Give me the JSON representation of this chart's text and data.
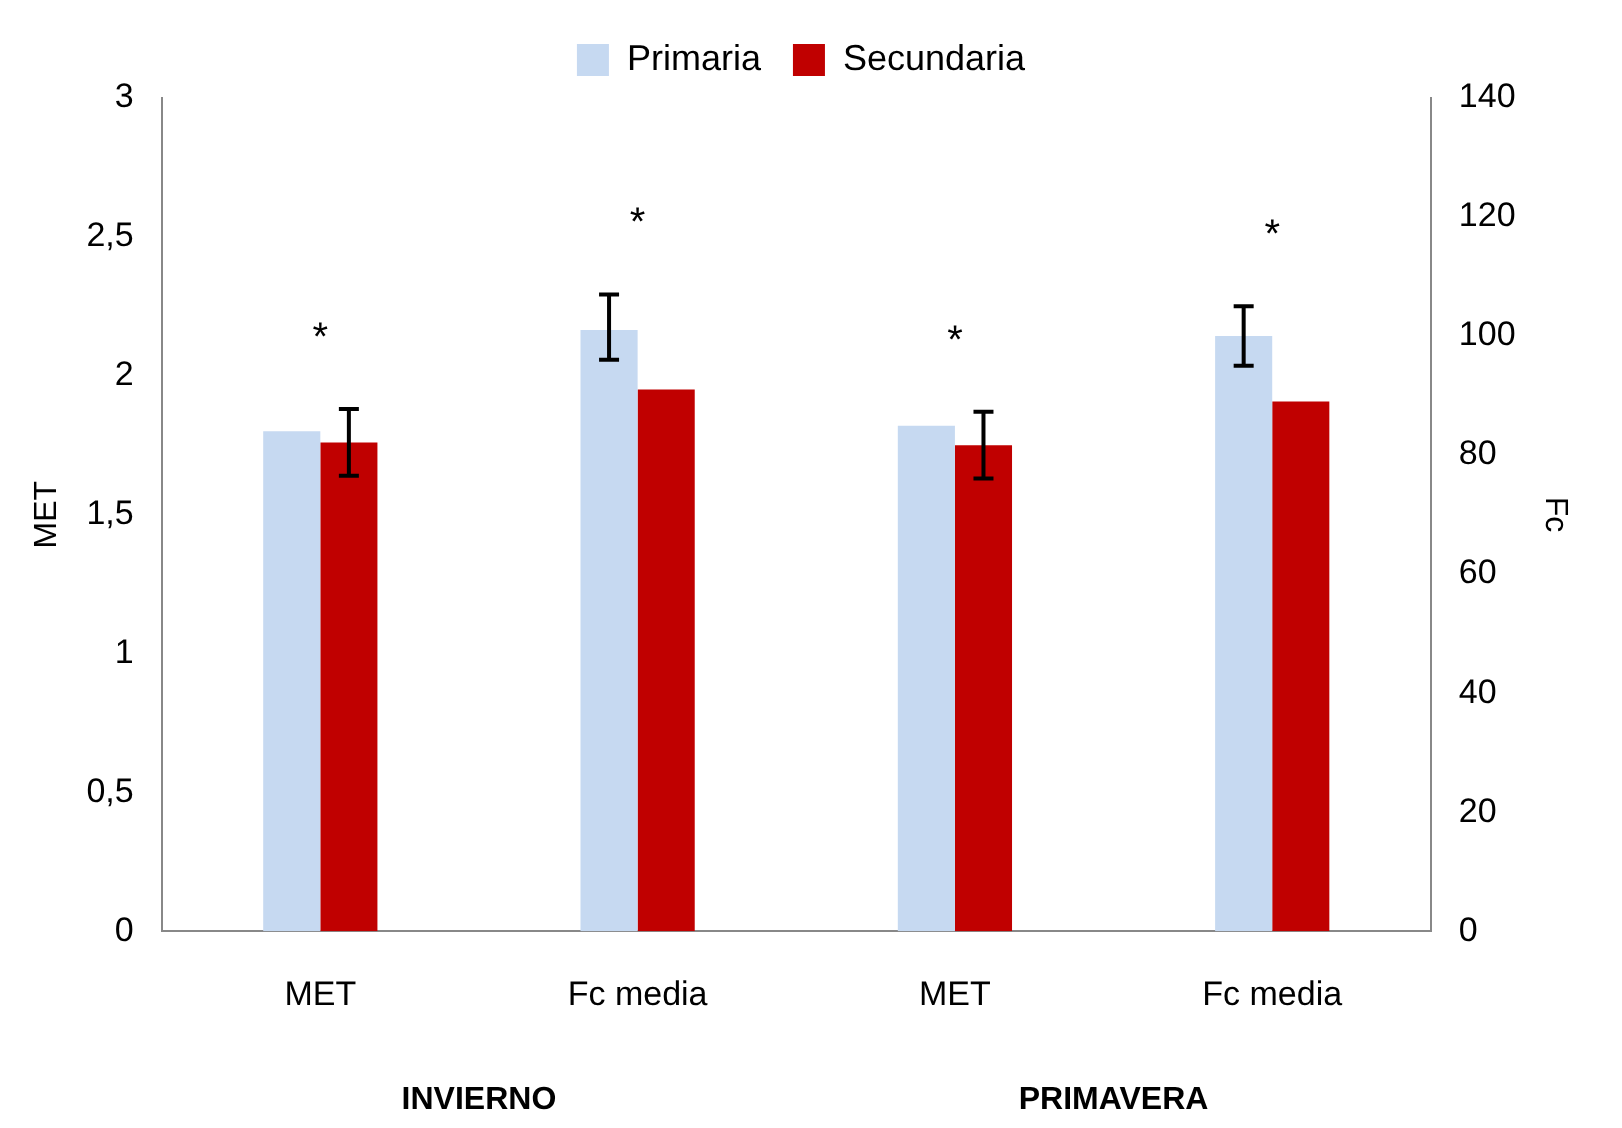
{
  "chart_data": {
    "type": "bar",
    "categories": [
      "MET",
      "Fc media",
      "MET",
      "Fc media"
    ],
    "series": [
      {
        "name": "Primaria",
        "color": "#c6d9f1",
        "values": [
          1.8,
          null,
          1.82,
          null
        ]
      },
      {
        "name": "Secundaria",
        "color": "#c00000",
        "values": [
          1.76,
          null,
          1.75,
          null
        ],
        "errors": [
          [
            1.64,
            1.88
          ],
          null,
          [
            1.63,
            1.87
          ],
          null
        ]
      },
      {
        "color": "#c6d9f1",
        "axis": "y2",
        "values": [
          null,
          101,
          null,
          100
        ],
        "errors": [
          null,
          [
            96,
            107
          ],
          null,
          [
            95,
            105
          ]
        ]
      },
      {
        "color": "#c00000",
        "axis": "y2",
        "values": [
          null,
          91,
          null,
          89
        ]
      }
    ],
    "ylabel": "MET",
    "y2label": "Fc",
    "ylim": [
      0,
      3
    ],
    "yticks": [
      0,
      {
        "value": 0.5,
        "label": "0,5"
      },
      1,
      {
        "value": 1.5,
        "label": "1,5"
      },
      2,
      {
        "value": 2.5,
        "label": "2,5"
      },
      3
    ],
    "y2lim": [
      0,
      140
    ],
    "y2ticks": [
      0,
      20,
      40,
      60,
      80,
      100,
      120,
      140
    ],
    "grid": false,
    "legend": "top",
    "annotations": [
      "*",
      "*",
      "*",
      "*",
      "INVIERNO",
      "PRIMAVERA"
    ]
  }
}
